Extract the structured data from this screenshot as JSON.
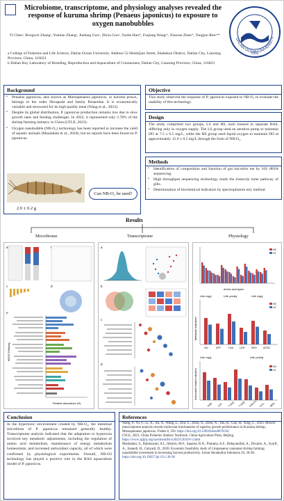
{
  "header": {
    "title": "Microbiome, transcriptome, and physiology analyses revealed the response of kuruma shrimp (Penaeus japonicus) to exposure to oxygen nanobubbles",
    "authors": "Yi Chenᵃ, Rongwei Zhangᵃ, Yuntian Zhangᵃ, Jiadong Guoᵃ, Zhixu Guoᵃ, Yuzhe Hanᵃᵇ, Fuqiang Wangᵃᵇ, Xiaoran Zhaoᵃᵇ, Tongjun Renᵃᵇ*",
    "affiliation_a": "a College of Fisheries and Life Science, Dalian Ocean University. Address 52 Heishijiao Street, Shahekou District, Dalian City, Liaoning Province, China, 116023",
    "affiliation_b": "b Dalian Key Laboratory of Breeding, Reproduction and Aquaculture of Crustaceans, Dalian City, Liaoning Province, China, 116023",
    "logo_text": "DALIAN OCEAN UNIVERSITY",
    "logo_year": "1952"
  },
  "background": {
    "title": "Background",
    "items": [
      "Penaeus japonicus, also known as Marsupenaeus japonicus, or kuruma prawn, belongs to the order Decapoda and family Penaeidae. It is economically valuable and renowned for its high-quality meat (Wang et al., 2023).",
      "Despite its global distribution, P. japonicus production remains low due to slow growth rates and feeding challenges. In 2022, it represented only 2.78% of the shrimp farming industry in China (CFLE, 2023).",
      "Oxygen nanobubble (NB-O₂) technology has been reported to increase the yield of aquatic animals (Mauladani et al., 2020), but no reports have been found on P. japonicus."
    ],
    "question": "Can NB-O₂ be used?",
    "weight": "2.0 ± 0.2 g"
  },
  "objective": {
    "title": "Objective",
    "text": "This study observed the response of P. japonicus exposed to NB-O₂ to evaluate the usability of this technology."
  },
  "design": {
    "title": "Design",
    "text": "The study comprised two groups, LS and HS, each housed in separate RAS, differing only in oxygen supply. The LS group used an aeration pump to maintain DO at 7.5 ± 0.5 mg/L, while the HS group used liquid oxygen to maintain DO at approximately 15.0 ± 0.5 mg/L through the form of NB-O₂."
  },
  "methods": {
    "title": "Methods",
    "items": [
      "Identification of composition and function of gut microbio me by 16S rRNA sequencing.",
      "High throughput sequencing technology reads the transcrip tome pathway of gills.",
      "Determination of biochemical indicators by spectrophotom etry method."
    ]
  },
  "results": {
    "title": "Results",
    "col1": "Microbiome",
    "col2": "Transcriptome",
    "col3": "Physiology"
  },
  "figures": {
    "micro_a": "a",
    "micro_b": "b",
    "micro_c": "c",
    "micro_d": "d",
    "micro_e": "e",
    "micro_axis": "Relative abundance (%)",
    "micro_pathway": "KEGG Pathway",
    "trans_a": "a",
    "trans_b": "b",
    "trans_c": "c",
    "trans_d": "d",
    "phys_aa_axis": "Amino acid types",
    "phys_ylabel": "Metabolic indicators",
    "phys_ylabel2": "Antioxidant related indicators",
    "phys_legend_hs": "HS",
    "phys_legend_ls": "LS",
    "phys_unit1": "Unit: mg/g",
    "phys_unit2": "Unit: μmol/g",
    "phys_unit3": "Unit: mg/g",
    "phys_mid_cats": [
      "Glu",
      "ATP",
      "T-AA",
      "LDH",
      "SDH",
      "ACSS"
    ],
    "phys_bot_cats": [
      "POD",
      "CAT",
      "T-AOC",
      "T-SOD",
      "GSH-Px",
      "H₂O₂",
      "MDA"
    ],
    "phys_mid_groups": [
      "Unit: mg/g",
      "Unit: μmol/g",
      "Unit: mg/g"
    ],
    "phys_bot_groups": [
      "Unit: mg/g",
      "Unit: μmol/g"
    ]
  },
  "conclusion": {
    "title": "Conclusion",
    "text": "In the hypertoxic environment created by NB-O₂, the intestinal microbiota of P. japonicus remained generally healthy. Transcriptome analysis indicated that the adaptation to hyperoxia involved key metabolic adjustments, including the regulation of amino acid metabolism, maintenance of energy metabolism homeostasis, and increased antioxidant capacity, all of which were confirmed by physiological experiments. Overall, NB-O2 technology has played a positive role in the RAS aquaculture model of P. japonicus."
  },
  "references": {
    "title": "References",
    "items": [
      "Wang, P., Yu, F., Li, X., Xu, X., Wang, L., Zhu, L., Zhou, X., Zhou, X., Yan, B., Gao, H., Xing, C., 2023. Muscle transcriptome analysis reveals molecular mechanisms of superior growth performance in Kuruma shrimp, Marsupenaeus japonicus. Fishes 8, 350.",
      "CFLE, 2023. China Fisheries Statistic Yearbook. China Agriculture Press, Beijing.",
      "Mauladani, S., Rahmawati, A.I., Absirin, M.F., Saputra, R.N., Pratama, A.F., Hidayatullah, A., Dwiarto, A., Syarif, A., Junaedi, H., Cahyadi, D., 2020. Economic feasibility study of Litopenaeus vannamei shrimp farming: nanobubble investment in increasing harvest productivity. Jurnal Akuakultur Indonesia 19, 30-38."
    ],
    "link1": "https://doi.org/10.3390/fishes8070350",
    "link2": "https://www.zgtjnj.org/navibooklist-n3023120419-1.html",
    "link3": "https://doi.org/10.19027/jai.19.1.30-38"
  }
}
